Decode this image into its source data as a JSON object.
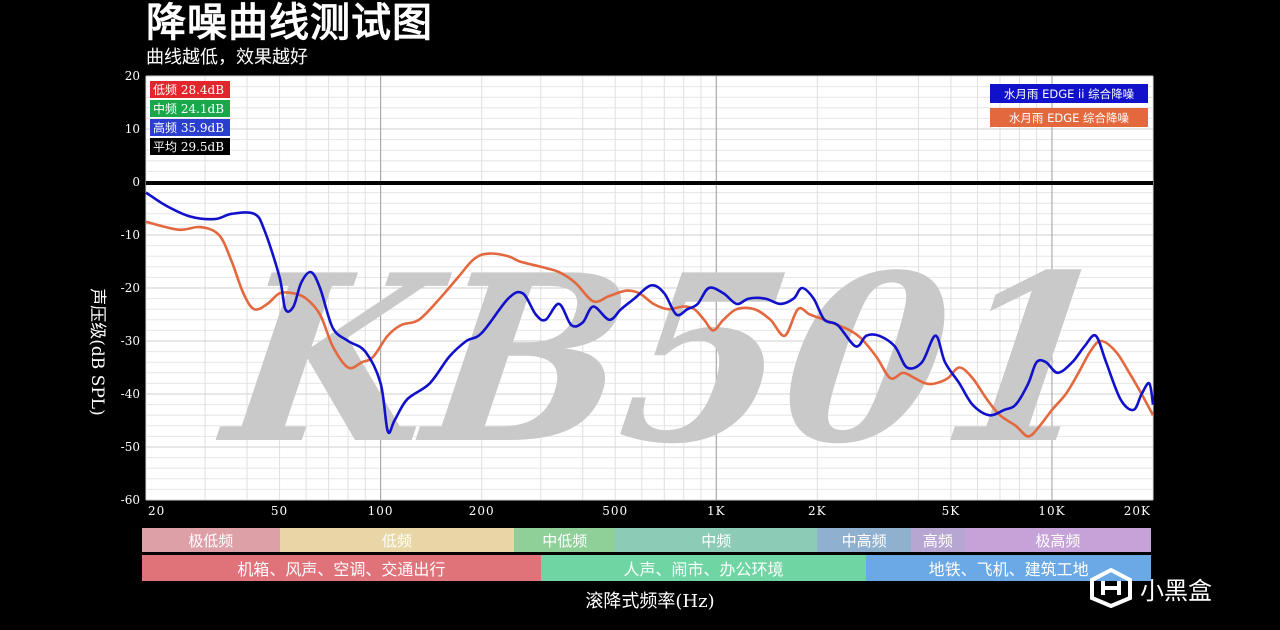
{
  "header": {
    "title": "降噪曲线测试图",
    "subtitle": "曲线越低，效果越好"
  },
  "stats": [
    {
      "label": "低频 28.4dB",
      "color": "#e3262b"
    },
    {
      "label": "中频 24.1dB",
      "color": "#19a74a"
    },
    {
      "label": "高频 35.9dB",
      "color": "#2a3fcf"
    },
    {
      "label": "平均 29.5dB",
      "color": "#000000"
    }
  ],
  "legend": [
    {
      "label": "水月雨 EDGE ii 综合降噪",
      "color": "#1111cc"
    },
    {
      "label": "水月雨 EDGE  综合降噪",
      "color": "#e3683e"
    }
  ],
  "watermark": "KB501",
  "y_axis_label": "声压级(dB SPL)",
  "x_axis_title": "滚降式频率(Hz)",
  "bands_freq": [
    {
      "label": "极低频",
      "from": 20,
      "to": 50,
      "color": "#dda0a6"
    },
    {
      "label": "低频",
      "from": 50,
      "to": 250,
      "color": "#e8d6a6"
    },
    {
      "label": "中低频",
      "from": 250,
      "to": 500,
      "color": "#8fcf98"
    },
    {
      "label": "中频",
      "from": 500,
      "to": 2000,
      "color": "#8ccbb5"
    },
    {
      "label": "中高频",
      "from": 2000,
      "to": 3800,
      "color": "#8fb0cf"
    },
    {
      "label": "高频",
      "from": 3800,
      "to": 5500,
      "color": "#b8a6d2"
    },
    {
      "label": "极高频",
      "from": 5500,
      "to": 20000,
      "color": "#c5a2d8"
    }
  ],
  "bands_scene": [
    {
      "label": "机箱、风声、空调、交通出行",
      "from": 20,
      "to": 300,
      "color": "#e0727a"
    },
    {
      "label": "人声、闹市、办公环境",
      "from": 300,
      "to": 2800,
      "color": "#6fd6a3"
    },
    {
      "label": "地铁、飞机、建筑工地",
      "from": 2800,
      "to": 20000,
      "color": "#6ba9e6"
    }
  ],
  "logo": {
    "text": "小黑盒",
    "icon": "heybox-logo-icon"
  },
  "chart_data": {
    "type": "line",
    "xscale": "log",
    "xlim": [
      20,
      20000
    ],
    "ylim": [
      -60,
      20
    ],
    "x_ticks": [
      20,
      50,
      100,
      200,
      500,
      1000,
      2000,
      5000,
      10000,
      20000
    ],
    "x_tick_labels": [
      "20",
      "50",
      "100",
      "200",
      "500",
      "1K",
      "2K",
      "5K",
      "10K",
      "20K"
    ],
    "y_ticks": [
      20,
      10,
      0,
      -10,
      -20,
      -30,
      -40,
      -50,
      -60
    ],
    "grid": true,
    "legend_position": "top-right",
    "series": [
      {
        "name": "水月雨 EDGE ii 综合降噪",
        "color": "#1111cc",
        "points": [
          [
            20,
            -2
          ],
          [
            23,
            -4.5
          ],
          [
            27,
            -6.5
          ],
          [
            32,
            -7
          ],
          [
            36,
            -6
          ],
          [
            42,
            -6
          ],
          [
            45,
            -9
          ],
          [
            50,
            -18
          ],
          [
            52,
            -24
          ],
          [
            55,
            -23.5
          ],
          [
            58,
            -19
          ],
          [
            62,
            -17
          ],
          [
            66,
            -20
          ],
          [
            72,
            -27.5
          ],
          [
            80,
            -30
          ],
          [
            90,
            -32
          ],
          [
            100,
            -38
          ],
          [
            105,
            -47
          ],
          [
            110,
            -45
          ],
          [
            120,
            -41
          ],
          [
            140,
            -38
          ],
          [
            160,
            -33
          ],
          [
            180,
            -30
          ],
          [
            200,
            -28.5
          ],
          [
            240,
            -22
          ],
          [
            265,
            -21
          ],
          [
            290,
            -25
          ],
          [
            310,
            -26
          ],
          [
            340,
            -23
          ],
          [
            370,
            -27
          ],
          [
            400,
            -26.5
          ],
          [
            430,
            -23.5
          ],
          [
            480,
            -26
          ],
          [
            520,
            -24
          ],
          [
            570,
            -22
          ],
          [
            640,
            -19.5
          ],
          [
            700,
            -21
          ],
          [
            760,
            -25
          ],
          [
            820,
            -24
          ],
          [
            880,
            -23
          ],
          [
            950,
            -20
          ],
          [
            1050,
            -21
          ],
          [
            1150,
            -23
          ],
          [
            1250,
            -22
          ],
          [
            1400,
            -22
          ],
          [
            1550,
            -23
          ],
          [
            1700,
            -22
          ],
          [
            1800,
            -20
          ],
          [
            1950,
            -22
          ],
          [
            2100,
            -26
          ],
          [
            2300,
            -27
          ],
          [
            2600,
            -31
          ],
          [
            2800,
            -29
          ],
          [
            3050,
            -29
          ],
          [
            3400,
            -31
          ],
          [
            3700,
            -35
          ],
          [
            4100,
            -34
          ],
          [
            4500,
            -29
          ],
          [
            4800,
            -34
          ],
          [
            5300,
            -38
          ],
          [
            5800,
            -42
          ],
          [
            6500,
            -44
          ],
          [
            7200,
            -43
          ],
          [
            7800,
            -42
          ],
          [
            8500,
            -38
          ],
          [
            9000,
            -34
          ],
          [
            9600,
            -34
          ],
          [
            10400,
            -36
          ],
          [
            11500,
            -34
          ],
          [
            12500,
            -31
          ],
          [
            13500,
            -29
          ],
          [
            14500,
            -34
          ],
          [
            16000,
            -41
          ],
          [
            17500,
            -43
          ],
          [
            18500,
            -40
          ],
          [
            19500,
            -38
          ],
          [
            20000,
            -42
          ]
        ]
      },
      {
        "name": "水月雨 EDGE  综合降噪",
        "color": "#e3683e",
        "points": [
          [
            20,
            -7.5
          ],
          [
            25,
            -9
          ],
          [
            29,
            -8.5
          ],
          [
            33,
            -10
          ],
          [
            36,
            -15
          ],
          [
            39,
            -21
          ],
          [
            42,
            -24
          ],
          [
            46,
            -23
          ],
          [
            50,
            -21
          ],
          [
            55,
            -21
          ],
          [
            60,
            -22
          ],
          [
            66,
            -25
          ],
          [
            72,
            -31
          ],
          [
            80,
            -35
          ],
          [
            88,
            -34
          ],
          [
            95,
            -33
          ],
          [
            105,
            -29
          ],
          [
            115,
            -27
          ],
          [
            130,
            -26
          ],
          [
            150,
            -22
          ],
          [
            170,
            -18
          ],
          [
            190,
            -14.5
          ],
          [
            210,
            -13.5
          ],
          [
            240,
            -14
          ],
          [
            260,
            -15
          ],
          [
            300,
            -16
          ],
          [
            340,
            -17
          ],
          [
            380,
            -19
          ],
          [
            430,
            -22.5
          ],
          [
            480,
            -21.5
          ],
          [
            540,
            -20.5
          ],
          [
            590,
            -21
          ],
          [
            650,
            -23
          ],
          [
            720,
            -24
          ],
          [
            800,
            -23.5
          ],
          [
            860,
            -24
          ],
          [
            920,
            -26
          ],
          [
            980,
            -28
          ],
          [
            1050,
            -26
          ],
          [
            1150,
            -24
          ],
          [
            1300,
            -24
          ],
          [
            1450,
            -26
          ],
          [
            1600,
            -29
          ],
          [
            1750,
            -24
          ],
          [
            1900,
            -25
          ],
          [
            2100,
            -26
          ],
          [
            2300,
            -27
          ],
          [
            2500,
            -28
          ],
          [
            2700,
            -29.5
          ],
          [
            3000,
            -33
          ],
          [
            3300,
            -37
          ],
          [
            3600,
            -36
          ],
          [
            3900,
            -37
          ],
          [
            4200,
            -38
          ],
          [
            4500,
            -38
          ],
          [
            4900,
            -37
          ],
          [
            5300,
            -35
          ],
          [
            5800,
            -37
          ],
          [
            6400,
            -41
          ],
          [
            7000,
            -44
          ],
          [
            7800,
            -46
          ],
          [
            8500,
            -48
          ],
          [
            9200,
            -46
          ],
          [
            10000,
            -43
          ],
          [
            11000,
            -40
          ],
          [
            12000,
            -36
          ],
          [
            13000,
            -32
          ],
          [
            14000,
            -30
          ],
          [
            15500,
            -32
          ],
          [
            17000,
            -36
          ],
          [
            18500,
            -40
          ],
          [
            20000,
            -44
          ]
        ]
      }
    ]
  }
}
